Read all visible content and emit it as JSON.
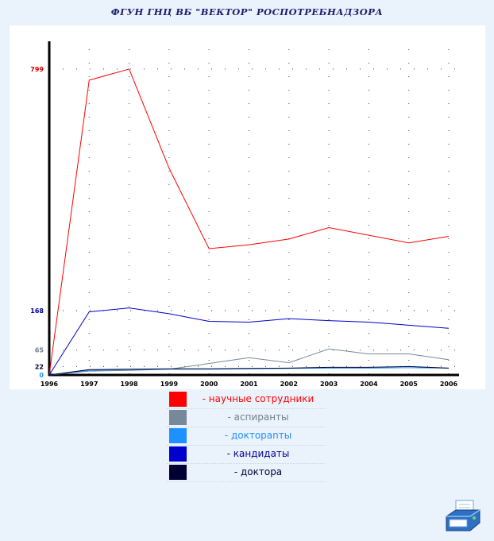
{
  "page": {
    "title": "ФГУН ГНЦ ВБ \"ВЕКТОР\" РОСПОТРЕБНАДЗОРА",
    "print_icon": "printer-icon"
  },
  "chart_data": {
    "type": "line",
    "title": "ФГУН ГНЦ ВБ \"ВЕКТОР\" РОСПОТРЕБНАДЗОРА",
    "x": [
      "1996",
      "1997",
      "1998",
      "1999",
      "2000",
      "2001",
      "2002",
      "2003",
      "2004",
      "2005",
      "2006"
    ],
    "ylim": [
      0,
      830
    ],
    "y_ticks": [
      {
        "value": 799,
        "label": "799",
        "color": "#cc0000"
      },
      {
        "value": 168,
        "label": "168",
        "color": "#000099"
      },
      {
        "value": 65,
        "label": "65",
        "color": "#708090"
      },
      {
        "value": 22,
        "label": "22",
        "color": "#000033"
      },
      {
        "value": 0,
        "label": "0",
        "color": "#1e90ff"
      }
    ],
    "grid": true,
    "legend_position": "bottom",
    "series": [
      {
        "name": "- научные сотрудники",
        "color": "#ff0000",
        "label_color": "#ff0000",
        "values": [
          0,
          770,
          799,
          540,
          330,
          340,
          355,
          385,
          365,
          345,
          362
        ]
      },
      {
        "name": "- аспиранты",
        "color": "#778899",
        "label_color": "#708090",
        "values": [
          0,
          10,
          12,
          15,
          30,
          45,
          32,
          68,
          55,
          55,
          40
        ]
      },
      {
        "name": "- доктораnты",
        "color": "#1e90ff",
        "label_color": "#1e90ff",
        "values": [
          0,
          12,
          14,
          15,
          15,
          16,
          17,
          18,
          18,
          19,
          18
        ]
      },
      {
        "name": "- кандидаты",
        "color": "#0000cc",
        "label_color": "#000099",
        "values": [
          0,
          165,
          175,
          160,
          140,
          138,
          147,
          142,
          138,
          130,
          122
        ]
      },
      {
        "name": "- доктора",
        "color": "#000033",
        "label_color": "#000033",
        "values": [
          0,
          14,
          15,
          16,
          16,
          17,
          18,
          20,
          20,
          22,
          18
        ]
      }
    ]
  }
}
